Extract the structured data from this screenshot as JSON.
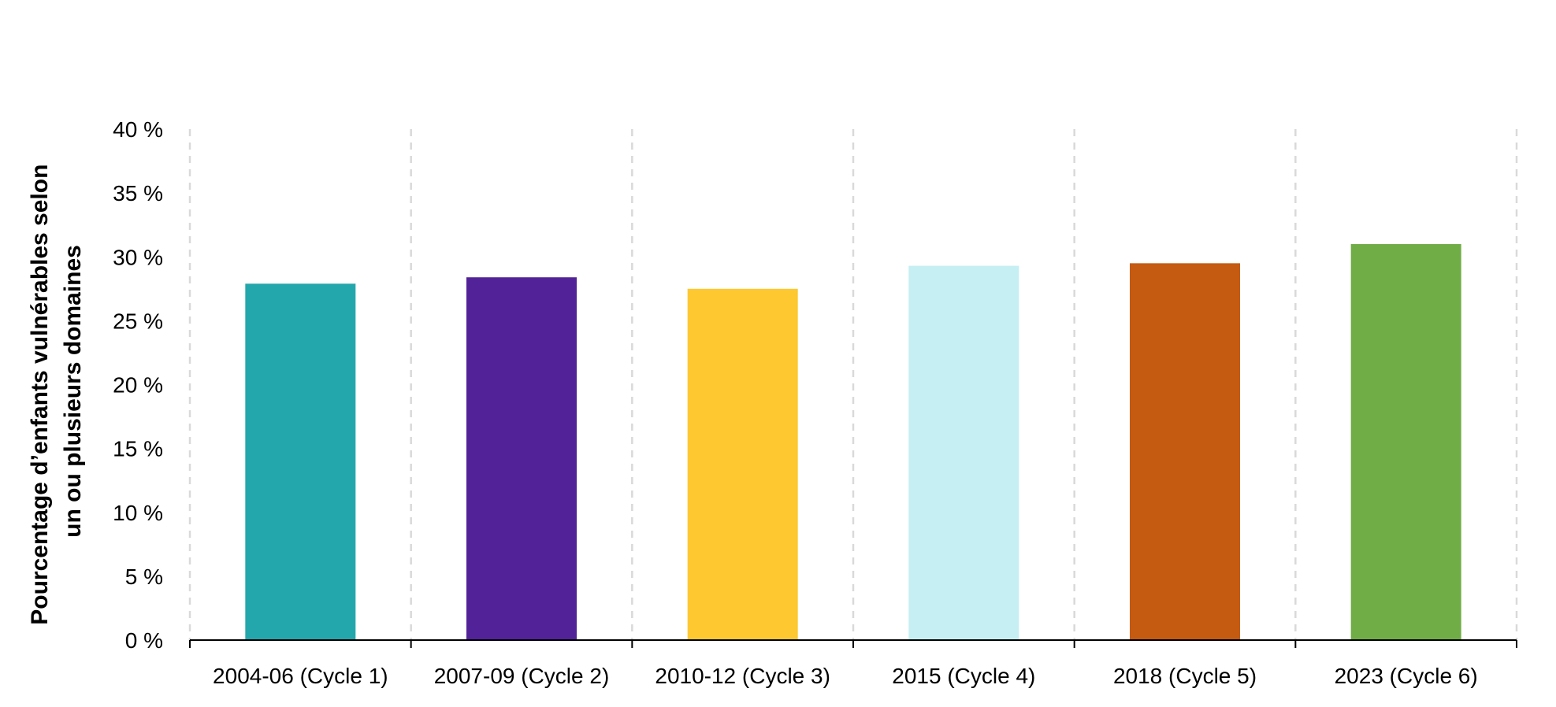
{
  "chart_data": {
    "type": "bar",
    "title": "",
    "xlabel": "",
    "ylabel_lines": [
      "Pourcentage d’enfants vulnérables selon",
      "un ou plusieurs domaines"
    ],
    "categories": [
      "2004-06 (Cycle 1)",
      "2007-09 (Cycle 2)",
      "2010-12 (Cycle 3)",
      "2015 (Cycle 4)",
      "2018 (Cycle 5)",
      "2023 (Cycle 6)"
    ],
    "values": [
      27.9,
      28.4,
      27.5,
      29.3,
      29.5,
      31.0
    ],
    "bar_colors": [
      "#23A7AC",
      "#522398",
      "#FDC830",
      "#C5EFF3",
      "#C55A11",
      "#70AD47"
    ],
    "ylim": [
      0,
      40
    ],
    "yticks": [
      0,
      5,
      10,
      15,
      20,
      25,
      30,
      35,
      40
    ],
    "ytick_labels": [
      "0 %",
      "5 %",
      "10 %",
      "15 %",
      "20 %",
      "25 %",
      "30 %",
      "35 %",
      "40 %"
    ],
    "grid": "vertical-dashed",
    "grid_color": "#D9D9D9",
    "axis_color": "#000000",
    "legend": "none"
  }
}
